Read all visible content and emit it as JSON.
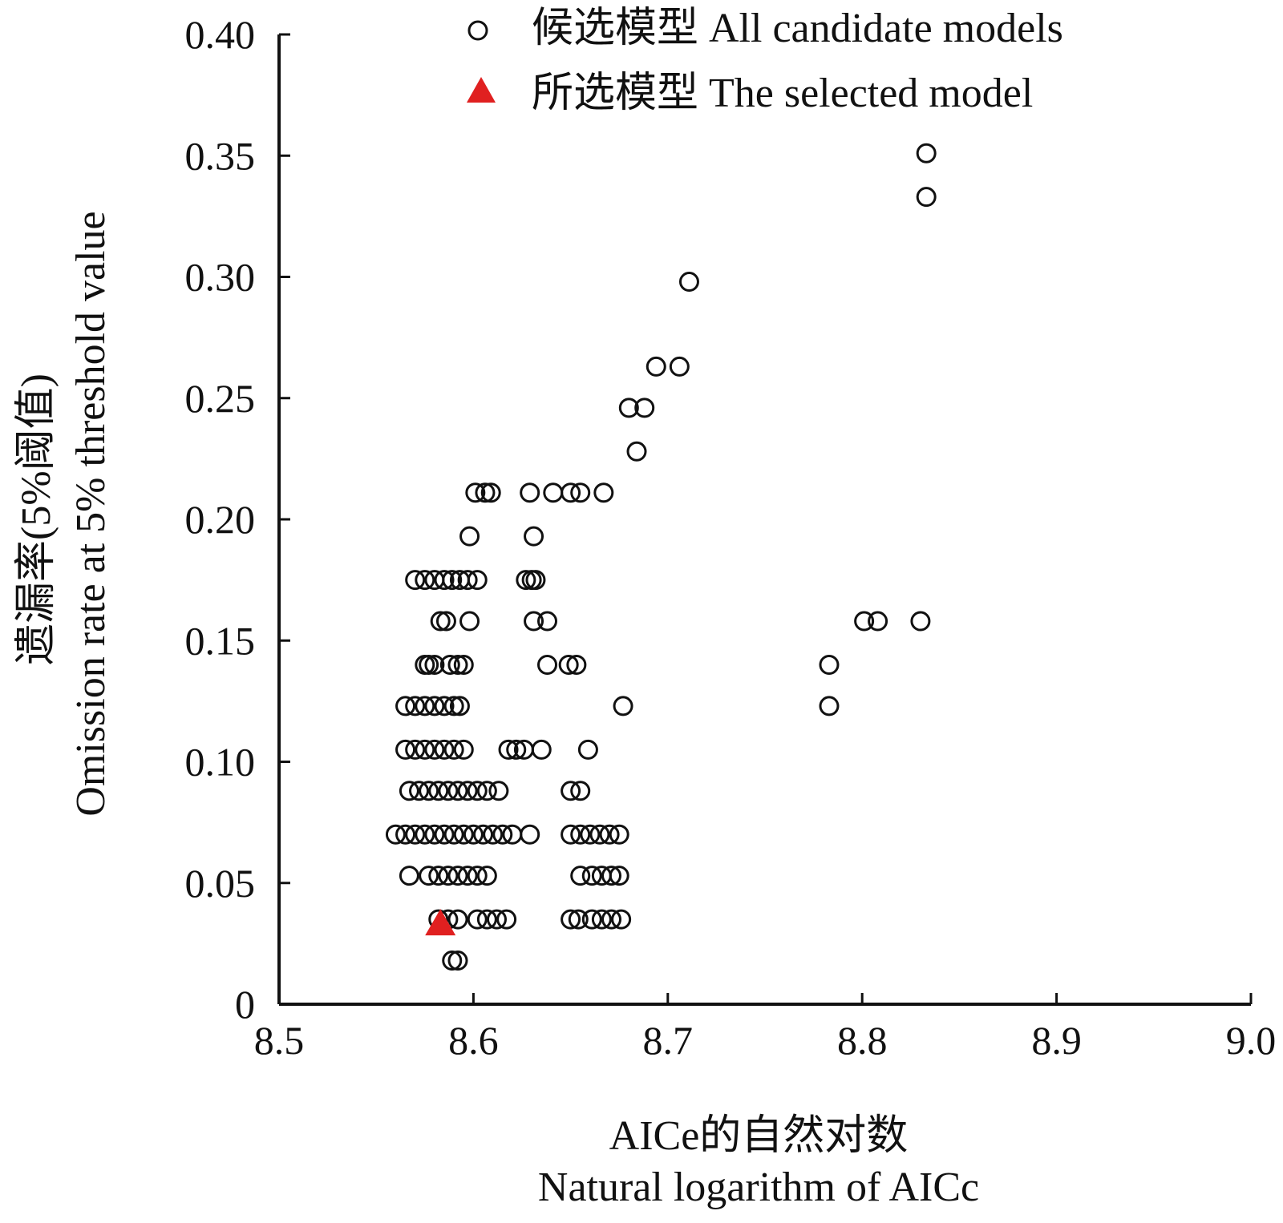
{
  "chart_data": {
    "type": "scatter",
    "title": "",
    "xlabel_cn": "AICe的自然对数",
    "xlabel_en": "Natural logarithm of AICc",
    "ylabel_cn": "遗漏率(5%阈值)",
    "ylabel_en": "Omission rate at 5% threshold value",
    "xlim": [
      8.5,
      9.0
    ],
    "ylim": [
      0,
      0.4
    ],
    "x_ticks": [
      8.5,
      8.6,
      8.7,
      8.8,
      8.9,
      9.0
    ],
    "x_tick_labels": [
      "8.5",
      "8.6",
      "8.7",
      "8.8",
      "8.9",
      "9.0"
    ],
    "y_ticks": [
      0,
      0.05,
      0.1,
      0.15,
      0.2,
      0.25,
      0.3,
      0.35,
      0.4
    ],
    "y_tick_labels": [
      "0",
      "0.05",
      "0.10",
      "0.15",
      "0.20",
      "0.25",
      "0.30",
      "0.35",
      "0.40"
    ],
    "grid": false,
    "legend_position": "top",
    "legend": [
      {
        "label": "候选模型 All candidate models",
        "marker": "open-circle",
        "color": "#111111"
      },
      {
        "label": "所选模型 The selected model",
        "marker": "filled-triangle",
        "color": "#e02020"
      }
    ],
    "series": [
      {
        "name": "候选模型 All candidate models",
        "marker": "open-circle",
        "color": "#111111",
        "points": [
          [
            8.833,
            0.351
          ],
          [
            8.833,
            0.333
          ],
          [
            8.711,
            0.298
          ],
          [
            8.694,
            0.263
          ],
          [
            8.706,
            0.263
          ],
          [
            8.68,
            0.246
          ],
          [
            8.688,
            0.246
          ],
          [
            8.684,
            0.228
          ],
          [
            8.601,
            0.211
          ],
          [
            8.606,
            0.211
          ],
          [
            8.609,
            0.211
          ],
          [
            8.629,
            0.211
          ],
          [
            8.641,
            0.211
          ],
          [
            8.65,
            0.211
          ],
          [
            8.655,
            0.211
          ],
          [
            8.667,
            0.211
          ],
          [
            8.598,
            0.193
          ],
          [
            8.631,
            0.193
          ],
          [
            8.57,
            0.175
          ],
          [
            8.575,
            0.175
          ],
          [
            8.58,
            0.175
          ],
          [
            8.585,
            0.175
          ],
          [
            8.589,
            0.175
          ],
          [
            8.593,
            0.175
          ],
          [
            8.597,
            0.175
          ],
          [
            8.602,
            0.175
          ],
          [
            8.627,
            0.175
          ],
          [
            8.63,
            0.175
          ],
          [
            8.632,
            0.175
          ],
          [
            8.583,
            0.158
          ],
          [
            8.586,
            0.158
          ],
          [
            8.598,
            0.158
          ],
          [
            8.631,
            0.158
          ],
          [
            8.638,
            0.158
          ],
          [
            8.801,
            0.158
          ],
          [
            8.808,
            0.158
          ],
          [
            8.83,
            0.158
          ],
          [
            8.575,
            0.14
          ],
          [
            8.577,
            0.14
          ],
          [
            8.58,
            0.14
          ],
          [
            8.588,
            0.14
          ],
          [
            8.592,
            0.14
          ],
          [
            8.595,
            0.14
          ],
          [
            8.638,
            0.14
          ],
          [
            8.649,
            0.14
          ],
          [
            8.653,
            0.14
          ],
          [
            8.783,
            0.14
          ],
          [
            8.565,
            0.123
          ],
          [
            8.57,
            0.123
          ],
          [
            8.575,
            0.123
          ],
          [
            8.58,
            0.123
          ],
          [
            8.585,
            0.123
          ],
          [
            8.59,
            0.123
          ],
          [
            8.593,
            0.123
          ],
          [
            8.677,
            0.123
          ],
          [
            8.783,
            0.123
          ],
          [
            8.565,
            0.105
          ],
          [
            8.57,
            0.105
          ],
          [
            8.575,
            0.105
          ],
          [
            8.58,
            0.105
          ],
          [
            8.585,
            0.105
          ],
          [
            8.59,
            0.105
          ],
          [
            8.595,
            0.105
          ],
          [
            8.618,
            0.105
          ],
          [
            8.622,
            0.105
          ],
          [
            8.626,
            0.105
          ],
          [
            8.635,
            0.105
          ],
          [
            8.659,
            0.105
          ],
          [
            8.567,
            0.088
          ],
          [
            8.572,
            0.088
          ],
          [
            8.577,
            0.088
          ],
          [
            8.582,
            0.088
          ],
          [
            8.587,
            0.088
          ],
          [
            8.592,
            0.088
          ],
          [
            8.597,
            0.088
          ],
          [
            8.602,
            0.088
          ],
          [
            8.607,
            0.088
          ],
          [
            8.613,
            0.088
          ],
          [
            8.65,
            0.088
          ],
          [
            8.655,
            0.088
          ],
          [
            8.56,
            0.07
          ],
          [
            8.565,
            0.07
          ],
          [
            8.57,
            0.07
          ],
          [
            8.575,
            0.07
          ],
          [
            8.58,
            0.07
          ],
          [
            8.585,
            0.07
          ],
          [
            8.59,
            0.07
          ],
          [
            8.595,
            0.07
          ],
          [
            8.6,
            0.07
          ],
          [
            8.605,
            0.07
          ],
          [
            8.61,
            0.07
          ],
          [
            8.615,
            0.07
          ],
          [
            8.62,
            0.07
          ],
          [
            8.629,
            0.07
          ],
          [
            8.65,
            0.07
          ],
          [
            8.655,
            0.07
          ],
          [
            8.66,
            0.07
          ],
          [
            8.665,
            0.07
          ],
          [
            8.67,
            0.07
          ],
          [
            8.675,
            0.07
          ],
          [
            8.567,
            0.053
          ],
          [
            8.577,
            0.053
          ],
          [
            8.582,
            0.053
          ],
          [
            8.587,
            0.053
          ],
          [
            8.592,
            0.053
          ],
          [
            8.597,
            0.053
          ],
          [
            8.602,
            0.053
          ],
          [
            8.607,
            0.053
          ],
          [
            8.655,
            0.053
          ],
          [
            8.661,
            0.053
          ],
          [
            8.666,
            0.053
          ],
          [
            8.671,
            0.053
          ],
          [
            8.675,
            0.053
          ],
          [
            8.582,
            0.035
          ],
          [
            8.587,
            0.035
          ],
          [
            8.592,
            0.035
          ],
          [
            8.602,
            0.035
          ],
          [
            8.607,
            0.035
          ],
          [
            8.612,
            0.035
          ],
          [
            8.617,
            0.035
          ],
          [
            8.65,
            0.035
          ],
          [
            8.654,
            0.035
          ],
          [
            8.661,
            0.035
          ],
          [
            8.666,
            0.035
          ],
          [
            8.671,
            0.035
          ],
          [
            8.676,
            0.035
          ],
          [
            8.589,
            0.018
          ],
          [
            8.592,
            0.018
          ]
        ]
      },
      {
        "name": "所选模型 The selected model",
        "marker": "filled-triangle",
        "color": "#e02020",
        "points": [
          [
            8.583,
            0.033
          ]
        ]
      }
    ]
  }
}
